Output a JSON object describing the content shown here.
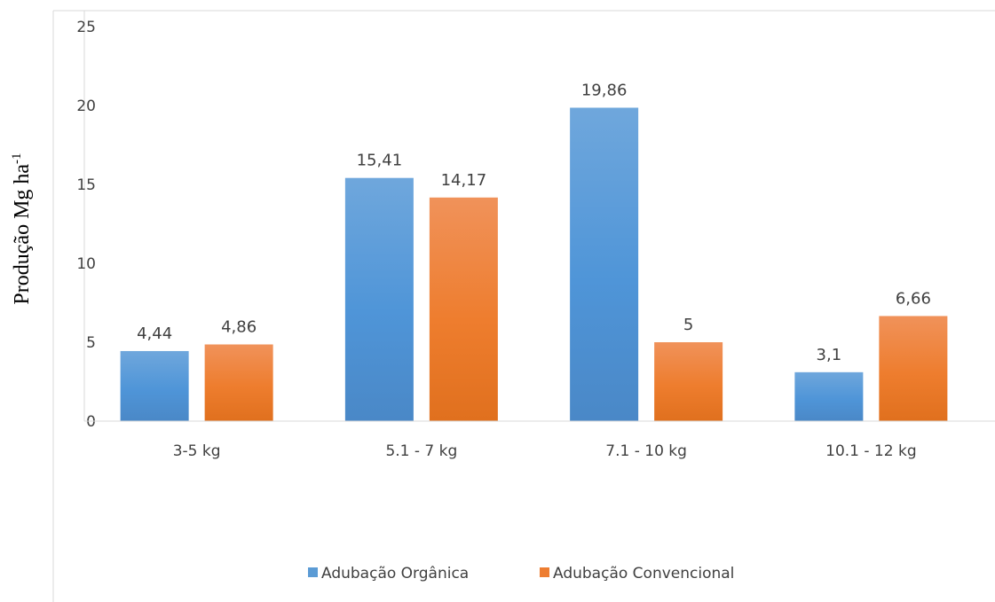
{
  "chart_data": {
    "type": "bar",
    "ylabel": "Produção Mg ha",
    "ylabel_superscript": "-1",
    "xlabel": "",
    "ylim": [
      0,
      25
    ],
    "yticks": [
      0,
      5,
      10,
      15,
      20,
      25
    ],
    "grid": false,
    "legend_position": "bottom",
    "categories": [
      "3-5 kg",
      "5.1 - 7 kg",
      "7.1 - 10 kg",
      "10.1 - 12 kg"
    ],
    "series": [
      {
        "name": "Adubação Orgânica",
        "color": "#5b9bd5",
        "values": [
          4.44,
          15.41,
          19.86,
          3.1
        ],
        "value_labels": [
          "4,44",
          "15,41",
          "19,86",
          "3,1"
        ]
      },
      {
        "name": "Adubação Convencional",
        "color": "#ed7d31",
        "values": [
          4.86,
          14.17,
          5,
          6.66
        ],
        "value_labels": [
          "4,86",
          "14,17",
          "5",
          "6,66"
        ]
      }
    ]
  }
}
